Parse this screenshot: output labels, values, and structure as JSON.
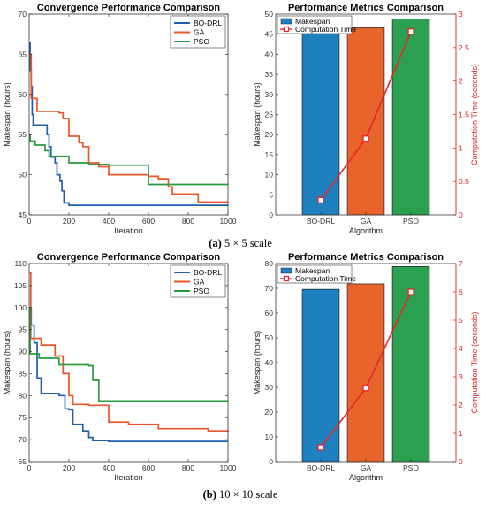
{
  "captions": [
    {
      "label": "(a)",
      "text": " 5 × 5 scale"
    },
    {
      "label": "(b)",
      "text": " 10 × 10 scale"
    }
  ],
  "chart_data": [
    {
      "id": "conv-a",
      "type": "line",
      "step": true,
      "title": "Convergence Performance Comparison",
      "xlabel": "Iteration",
      "ylabel": "Makespan (hours)",
      "xlim": [
        0,
        1000
      ],
      "ylim": [
        45,
        70
      ],
      "xticks": [
        0,
        200,
        400,
        600,
        800,
        1000
      ],
      "yticks": [
        45,
        50,
        55,
        60,
        65,
        70
      ],
      "legend": "top-right",
      "series": [
        {
          "name": "BO-DRL",
          "color": "#1f5fb0",
          "points": [
            [
              0,
              66.5
            ],
            [
              5,
              63
            ],
            [
              10,
              61
            ],
            [
              15,
              57.5
            ],
            [
              20,
              56.2
            ],
            [
              90,
              55
            ],
            [
              100,
              53.5
            ],
            [
              110,
              52.2
            ],
            [
              130,
              51.5
            ],
            [
              140,
              50
            ],
            [
              155,
              49.2
            ],
            [
              165,
              48
            ],
            [
              175,
              46.5
            ],
            [
              200,
              46.2
            ],
            [
              1000,
              46.2
            ]
          ]
        },
        {
          "name": "GA",
          "color": "#e8562a",
          "points": [
            [
              0,
              65
            ],
            [
              10,
              59.5
            ],
            [
              40,
              57.9
            ],
            [
              150,
              57.7
            ],
            [
              170,
              57
            ],
            [
              200,
              54.8
            ],
            [
              250,
              54
            ],
            [
              270,
              53.5
            ],
            [
              300,
              51.5
            ],
            [
              350,
              51
            ],
            [
              400,
              50
            ],
            [
              600,
              49.8
            ],
            [
              650,
              49.5
            ],
            [
              700,
              48.5
            ],
            [
              720,
              47.6
            ],
            [
              850,
              46.6
            ],
            [
              1000,
              46.6
            ]
          ]
        },
        {
          "name": "PSO",
          "color": "#2a9a3e",
          "points": [
            [
              0,
              55
            ],
            [
              5,
              54.2
            ],
            [
              30,
              53.7
            ],
            [
              80,
              53
            ],
            [
              100,
              52.3
            ],
            [
              200,
              51.5
            ],
            [
              300,
              51.3
            ],
            [
              400,
              51.2
            ],
            [
              590,
              51.2
            ],
            [
              600,
              48.8
            ],
            [
              1000,
              48.8
            ]
          ]
        }
      ]
    },
    {
      "id": "perf-a",
      "type": "bar",
      "title": "Performance Metrics Comparison",
      "xlabel": "Algorithm",
      "ylabel": "Makespan (hours)",
      "y2label": "Computation Time (seconds)",
      "categories": [
        "BO-DRL",
        "GA",
        "PSO"
      ],
      "ylim": [
        0,
        50
      ],
      "yticks": [
        0,
        5,
        10,
        15,
        20,
        25,
        30,
        35,
        40,
        45,
        50
      ],
      "y2lim": [
        0,
        3
      ],
      "y2ticks": [
        0,
        0.5,
        1,
        1.5,
        2,
        2.5,
        3
      ],
      "legend": "top-left",
      "series": [
        {
          "name": "Makespan",
          "kind": "bar",
          "values": [
            46.2,
            46.6,
            48.8
          ],
          "colors": [
            "#1f80c0",
            "#e8642a",
            "#2aa050"
          ]
        },
        {
          "name": "Computation Time",
          "kind": "line",
          "color": "#e8262a",
          "values": [
            0.22,
            1.14,
            2.74
          ]
        }
      ]
    },
    {
      "id": "conv-b",
      "type": "line",
      "step": true,
      "title": "Convergence Performance Comparison",
      "xlabel": "Iteration",
      "ylabel": "Makespan (hours)",
      "xlim": [
        0,
        1000
      ],
      "ylim": [
        65,
        110
      ],
      "xticks": [
        0,
        200,
        400,
        600,
        800,
        1000
      ],
      "yticks": [
        65,
        70,
        75,
        80,
        85,
        90,
        95,
        100,
        105,
        110
      ],
      "legend": "top-right",
      "series": [
        {
          "name": "BO-DRL",
          "color": "#1f5fb0",
          "points": [
            [
              0,
              100
            ],
            [
              10,
              96
            ],
            [
              25,
              92
            ],
            [
              40,
              84
            ],
            [
              60,
              80.5
            ],
            [
              150,
              80
            ],
            [
              180,
              77
            ],
            [
              200,
              76.8
            ],
            [
              220,
              73.5
            ],
            [
              270,
              72
            ],
            [
              300,
              70.5
            ],
            [
              320,
              69.8
            ],
            [
              400,
              69.6
            ],
            [
              1000,
              69.6
            ]
          ]
        },
        {
          "name": "GA",
          "color": "#e8562a",
          "points": [
            [
              0,
              108
            ],
            [
              8,
              93
            ],
            [
              60,
              91.5
            ],
            [
              130,
              89
            ],
            [
              170,
              85
            ],
            [
              200,
              80
            ],
            [
              220,
              78
            ],
            [
              300,
              77.8
            ],
            [
              400,
              74
            ],
            [
              500,
              73.5
            ],
            [
              650,
              72.5
            ],
            [
              900,
              72
            ],
            [
              1000,
              71.8
            ]
          ]
        },
        {
          "name": "PSO",
          "color": "#2a9a3e",
          "points": [
            [
              0,
              100
            ],
            [
              5,
              89.5
            ],
            [
              50,
              88.5
            ],
            [
              150,
              87
            ],
            [
              300,
              86.8
            ],
            [
              320,
              83.5
            ],
            [
              350,
              78.8
            ],
            [
              1000,
              78.8
            ]
          ]
        }
      ]
    },
    {
      "id": "perf-b",
      "type": "bar",
      "title": "Performance Metrics Comparison",
      "xlabel": "Algorithm",
      "ylabel": "Makespan (hours)",
      "y2label": "Computation Time (seconds)",
      "categories": [
        "BO-DRL",
        "GA",
        "PSO"
      ],
      "ylim": [
        0,
        80
      ],
      "yticks": [
        0,
        10,
        20,
        30,
        40,
        50,
        60,
        70,
        80
      ],
      "y2lim": [
        0,
        7
      ],
      "y2ticks": [
        0,
        1,
        2,
        3,
        4,
        5,
        6,
        7
      ],
      "legend": "top-left",
      "series": [
        {
          "name": "Makespan",
          "kind": "bar",
          "values": [
            69.6,
            71.8,
            78.8
          ],
          "colors": [
            "#1f80c0",
            "#e8642a",
            "#2aa050"
          ]
        },
        {
          "name": "Computation Time",
          "kind": "line",
          "color": "#e8262a",
          "values": [
            0.5,
            2.6,
            6.0
          ]
        }
      ]
    }
  ]
}
